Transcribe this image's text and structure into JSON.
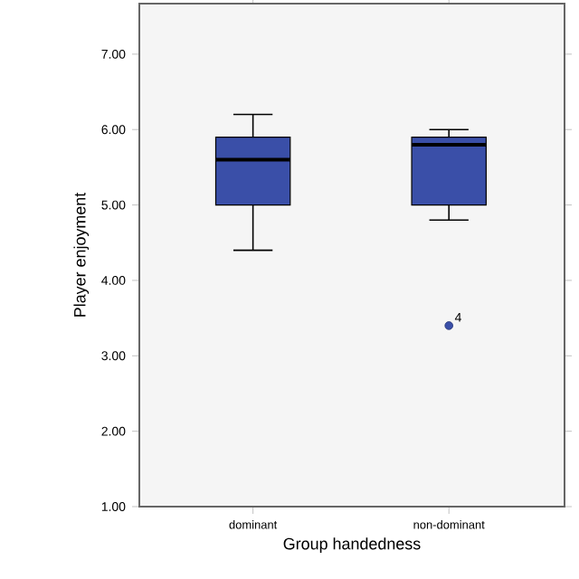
{
  "chart_data": {
    "type": "box",
    "xlabel": "Group handedness",
    "ylabel": "Player enjoyment",
    "categories": [
      "dominant",
      "non-dominant"
    ],
    "ylim": [
      1,
      7.67
    ],
    "yticks": [
      {
        "value": 1,
        "label": "1.00"
      },
      {
        "value": 2,
        "label": "2.00"
      },
      {
        "value": 3,
        "label": "3.00"
      },
      {
        "value": 4,
        "label": "4.00"
      },
      {
        "value": 5,
        "label": "5.00"
      },
      {
        "value": 6,
        "label": "6.00"
      },
      {
        "value": 7,
        "label": "7.00"
      }
    ],
    "series": [
      {
        "color": "#3a4fa8",
        "boxes": [
          {
            "low": 4.4,
            "q1": 5.0,
            "median": 5.6,
            "q3": 5.9,
            "high": 6.2
          },
          {
            "low": 4.8,
            "q1": 5.0,
            "median": 5.8,
            "q3": 5.9,
            "high": 6.0,
            "outliers": [
              3.4
            ]
          }
        ]
      }
    ],
    "annotations": [
      "4"
    ],
    "grid": false
  }
}
